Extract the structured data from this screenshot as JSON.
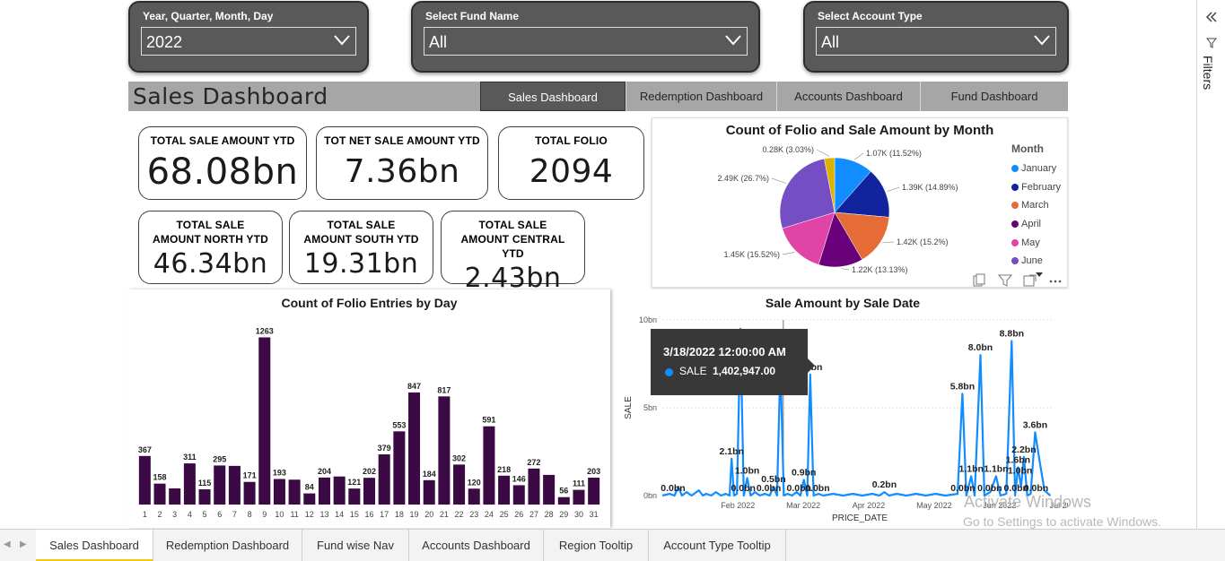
{
  "slicers": [
    {
      "label": "Year, Quarter, Month, Day",
      "value": "2022"
    },
    {
      "label": "Select Fund Name",
      "value": "All"
    },
    {
      "label": "Select Account Type",
      "value": "All"
    }
  ],
  "header": {
    "title": "Sales Dashboard",
    "nav": [
      "Sales Dashboard",
      "Redemption Dashboard",
      "Accounts Dashboard",
      "Fund Dashboard"
    ]
  },
  "kpis": {
    "total_sale": {
      "title": "TOTAL SALE AMOUNT YTD",
      "value": "68.08bn"
    },
    "net_sale": {
      "title": "TOT NET SALE AMOUNT YTD",
      "value": "7.36bn"
    },
    "total_folio": {
      "title": "TOTAL FOLIO",
      "value": "2094"
    },
    "north": {
      "title": "TOTAL SALE AMOUNT NORTH YTD",
      "value": "46.34bn"
    },
    "south": {
      "title": "TOTAL SALE AMOUNT SOUTH YTD",
      "value": "19.31bn"
    },
    "central": {
      "title": "TOTAL SALE AMOUNT CENTRAL YTD",
      "value": "2.43bn"
    }
  },
  "pie": {
    "chart_data": {
      "type": "pie",
      "title": "Count of Folio and Sale Amount by Month",
      "legend_title": "Month",
      "legend_placement": "right",
      "slices": [
        {
          "name": "January",
          "value": 11.52,
          "label": "1.07K (11.52%)",
          "color": "#118dff"
        },
        {
          "name": "February",
          "value": 14.89,
          "label": "1.39K (14.89%)",
          "color": "#12239e"
        },
        {
          "name": "March",
          "value": 15.2,
          "label": "1.42K (15.2%)",
          "color": "#e66c37"
        },
        {
          "name": "April",
          "value": 13.13,
          "label": "1.22K (13.13%)",
          "color": "#6b007b"
        },
        {
          "name": "May",
          "value": 15.52,
          "label": "1.45K (15.52%)",
          "color": "#e044a7"
        },
        {
          "name": "June",
          "value": 26.7,
          "label": "2.49K (26.7%)",
          "color": "#744ec2"
        },
        {
          "name": "",
          "value": 3.03,
          "label": "0.28K (3.03%)",
          "color": "#d9b300"
        }
      ]
    }
  },
  "bar": {
    "chart_data": {
      "type": "bar",
      "title": "Count of Folio Entries by Day",
      "categories": [
        "1",
        "2",
        "3",
        "4",
        "5",
        "6",
        "7",
        "8",
        "9",
        "10",
        "11",
        "12",
        "13",
        "14",
        "15",
        "16",
        "17",
        "18",
        "19",
        "20",
        "21",
        "22",
        "23",
        "24",
        "25",
        "26",
        "27",
        "28",
        "29",
        "30",
        "31"
      ],
      "values": [
        367,
        158,
        122,
        311,
        115,
        295,
        292,
        171,
        1263,
        193,
        188,
        84,
        204,
        212,
        121,
        202,
        379,
        553,
        847,
        184,
        817,
        302,
        120,
        591,
        218,
        146,
        272,
        224,
        56,
        111,
        203
      ],
      "data_labels": [
        "367",
        "158",
        "",
        "311",
        "115",
        "295",
        "",
        "171",
        "1263",
        "193",
        "",
        "84",
        "204",
        "",
        "121",
        "202",
        "379",
        "553",
        "847",
        "184",
        "817",
        "302",
        "120",
        "591",
        "218",
        "146",
        "272",
        "",
        "56",
        "111",
        "203"
      ],
      "bar_color": "#3b0a45",
      "ylim": [
        0,
        1300
      ]
    }
  },
  "line": {
    "chart_data": {
      "type": "line",
      "title": "Sale Amount by Sale Date",
      "xlabel": "PRICE_DATE",
      "ylabel": "SALE",
      "yticks": [
        "0bn",
        "5bn",
        "10bn"
      ],
      "xticks": [
        "Feb 2022",
        "Mar 2022",
        "Apr 2022",
        "May 2022",
        "Jun 2022",
        "Jul 2022"
      ],
      "ylim": [
        0,
        10
      ],
      "grid": true,
      "color": "#118dff",
      "points": [
        [
          0.0,
          0.0
        ],
        [
          1.5,
          0.1
        ],
        [
          2.5,
          0.0
        ],
        [
          3.3,
          0.5
        ],
        [
          4.0,
          0.0
        ],
        [
          5.0,
          0.2
        ],
        [
          6.0,
          0.0
        ],
        [
          7.5,
          0.3
        ],
        [
          8.3,
          0.0
        ],
        [
          9.0,
          0.1
        ],
        [
          10.0,
          0.0
        ],
        [
          11.0,
          0.2
        ],
        [
          12.0,
          0.0
        ],
        [
          13.0,
          0.1
        ],
        [
          13.8,
          0.0
        ],
        [
          14.2,
          2.1
        ],
        [
          14.7,
          0.0
        ],
        [
          15.3,
          0.1
        ],
        [
          16.0,
          9.5
        ],
        [
          16.7,
          0.0
        ],
        [
          17.4,
          1.0
        ],
        [
          18.1,
          0.0
        ],
        [
          19.0,
          0.2
        ],
        [
          20.0,
          0.0
        ],
        [
          21.0,
          0.1
        ],
        [
          22.0,
          0.0
        ],
        [
          22.8,
          0.5
        ],
        [
          23.5,
          0.0
        ],
        [
          24.2,
          7.5
        ],
        [
          24.9,
          0.0
        ],
        [
          25.7,
          0.1
        ],
        [
          26.6,
          0.0
        ],
        [
          27.5,
          0.2
        ],
        [
          28.3,
          0.0
        ],
        [
          29.0,
          0.9
        ],
        [
          29.7,
          0.0
        ],
        [
          30.3,
          6.9
        ],
        [
          31.0,
          0.0
        ],
        [
          32.0,
          0.1
        ],
        [
          33.0,
          0.0
        ],
        [
          35.0,
          0.1
        ],
        [
          37.0,
          0.0
        ],
        [
          39.0,
          0.1
        ],
        [
          41.0,
          0.0
        ],
        [
          43.0,
          0.1
        ],
        [
          44.5,
          0.0
        ],
        [
          45.5,
          0.2
        ],
        [
          46.5,
          0.0
        ],
        [
          48.0,
          0.1
        ],
        [
          50.0,
          0.0
        ],
        [
          52.0,
          0.1
        ],
        [
          54.0,
          0.0
        ],
        [
          56.0,
          0.1
        ],
        [
          58.0,
          0.0
        ],
        [
          60.5,
          0.1
        ],
        [
          61.5,
          5.8
        ],
        [
          62.3,
          0.0
        ],
        [
          63.3,
          1.1
        ],
        [
          64.0,
          0.0
        ],
        [
          65.2,
          8.0
        ],
        [
          66.0,
          0.0
        ],
        [
          67.2,
          0.2
        ],
        [
          68.4,
          1.1
        ],
        [
          69.3,
          0.0
        ],
        [
          70.5,
          0.1
        ],
        [
          71.6,
          8.8
        ],
        [
          72.3,
          0.0
        ],
        [
          72.9,
          1.6
        ],
        [
          73.5,
          0.5
        ],
        [
          74.1,
          2.2
        ],
        [
          74.8,
          0.0
        ],
        [
          75.5,
          0.1
        ],
        [
          76.4,
          3.6
        ],
        [
          77.3,
          2.0
        ],
        [
          78.3,
          0.3
        ],
        [
          79.5,
          0.0
        ]
      ],
      "labels": [
        {
          "text": "0.0bn",
          "x": 2.2,
          "y": 0.0
        },
        {
          "text": "2.1bn",
          "x": 14.2,
          "y": 2.1
        },
        {
          "text": "1.0bn",
          "x": 17.4,
          "y": 1.0
        },
        {
          "text": "0.0bn",
          "x": 16.6,
          "y": 0.0
        },
        {
          "text": "0.5bn",
          "x": 22.8,
          "y": 0.5
        },
        {
          "text": "0.0bn",
          "x": 21.8,
          "y": 0.0
        },
        {
          "text": "0.9bn",
          "x": 29.0,
          "y": 0.9
        },
        {
          "text": "6.9bn",
          "x": 30.3,
          "y": 6.9
        },
        {
          "text": "0.0bn",
          "x": 28.0,
          "y": 0.0
        },
        {
          "text": "0.0bn",
          "x": 31.8,
          "y": 0.0
        },
        {
          "text": "0.2bn",
          "x": 45.5,
          "y": 0.2
        },
        {
          "text": "5.8bn",
          "x": 61.5,
          "y": 5.8
        },
        {
          "text": "0.0bn",
          "x": 61.6,
          "y": 0.0
        },
        {
          "text": "1.1bn",
          "x": 63.3,
          "y": 1.1
        },
        {
          "text": "8.0bn",
          "x": 65.2,
          "y": 8.0
        },
        {
          "text": "0.0bn",
          "x": 67.1,
          "y": 0.0
        },
        {
          "text": "1.1bn",
          "x": 68.4,
          "y": 1.1
        },
        {
          "text": "8.8bn",
          "x": 71.6,
          "y": 8.8
        },
        {
          "text": "1.6bn",
          "x": 72.9,
          "y": 1.6
        },
        {
          "text": "1.0bn",
          "x": 73.3,
          "y": 1.0
        },
        {
          "text": "2.2bn",
          "x": 74.1,
          "y": 2.2
        },
        {
          "text": "0.0bn",
          "x": 72.5,
          "y": 0.0
        },
        {
          "text": "3.6bn",
          "x": 76.4,
          "y": 3.6
        },
        {
          "text": "0.0bn",
          "x": 76.6,
          "y": 0.0
        }
      ]
    },
    "tooltip": {
      "date": "3/18/2022 12:00:00 AM",
      "series": "SALE",
      "value": "1,402,947.00"
    }
  },
  "tabs": [
    "Sales Dashboard",
    "Redemption Dashboard",
    "Fund wise Nav",
    "Accounts Dashboard",
    "Region Tooltip",
    "Account Type Tooltip"
  ],
  "filters_label": "Filters",
  "watermark": {
    "line1": "Activate Windows",
    "line2": "Go to Settings to activate Windows."
  }
}
